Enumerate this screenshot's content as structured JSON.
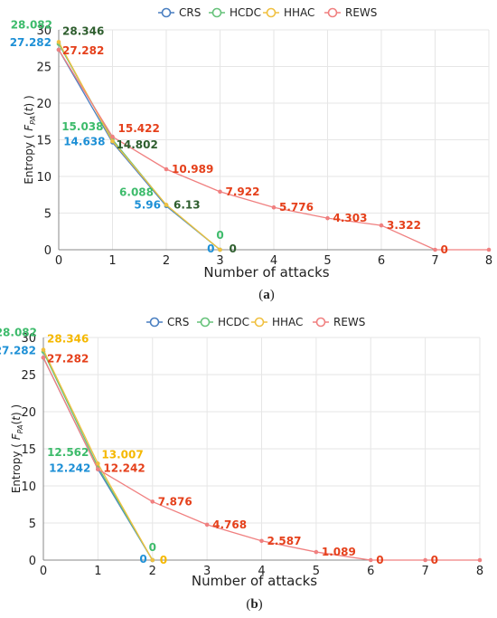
{
  "chart_data": [
    {
      "type": "line",
      "caption": "(a)",
      "xlabel": "Number of attacks",
      "ylabel": "Entropy",
      "ylabel_formula": "F",
      "ylabel_sub": "PA",
      "ylabel_arg": "t",
      "xlim": [
        0,
        8
      ],
      "ylim": [
        0,
        30
      ],
      "xticks": [
        "0",
        "1",
        "2",
        "3",
        "4",
        "5",
        "6",
        "7",
        "8"
      ],
      "yticks": [
        "0",
        "5",
        "10",
        "15",
        "20",
        "25",
        "30"
      ],
      "legend": [
        "CRS",
        "HCDC",
        "HHAC",
        "REWS"
      ],
      "legend_position": "top-center",
      "grid": true,
      "series": [
        {
          "name": "CRS",
          "color": "#4a7fc1",
          "label_color": "#1e90d6",
          "x": [
            0,
            1,
            2,
            3
          ],
          "y": [
            27.282,
            14.638,
            5.96,
            0
          ],
          "labels": [
            "27.282",
            "14.638",
            "5.96",
            "0"
          ]
        },
        {
          "name": "HCDC",
          "color": "#66c27a",
          "label_color": "#3dbb6b",
          "x": [
            0,
            1,
            2,
            3
          ],
          "y": [
            28.082,
            15.038,
            6.088,
            0
          ],
          "labels": [
            "28.082",
            "15.038",
            "6.088",
            "0"
          ]
        },
        {
          "name": "HHAC",
          "color": "#f0c040",
          "label_color": "#2e5e2e",
          "x": [
            0,
            1,
            2,
            3
          ],
          "y": [
            28.346,
            14.802,
            6.13,
            0
          ],
          "labels": [
            "28.346",
            "14.802",
            "6.13",
            "0"
          ]
        },
        {
          "name": "REWS",
          "color": "#f08080",
          "label_color": "#e5401b",
          "x": [
            0,
            1,
            2,
            3,
            4,
            5,
            6,
            7,
            8
          ],
          "y": [
            27.282,
            15.422,
            10.989,
            7.922,
            5.776,
            4.303,
            3.322,
            0,
            0
          ],
          "labels": [
            "27.282",
            "15.422",
            "10.989",
            "7.922",
            "5.776",
            "4.303",
            "3.322",
            "0",
            ""
          ]
        }
      ]
    },
    {
      "type": "line",
      "caption": "(b)",
      "xlabel": "Number of attacks",
      "ylabel": "Entropy",
      "ylabel_formula": "F",
      "ylabel_sub": "PA",
      "ylabel_arg": "t",
      "xlim": [
        0,
        8
      ],
      "ylim": [
        0,
        30
      ],
      "xticks": [
        "0",
        "1",
        "2",
        "3",
        "4",
        "5",
        "6",
        "7",
        "8"
      ],
      "yticks": [
        "0",
        "5",
        "10",
        "15",
        "20",
        "25",
        "30"
      ],
      "legend": [
        "CRS",
        "HCDC",
        "HHAC",
        "REWS"
      ],
      "legend_position": "top-center",
      "grid": true,
      "series": [
        {
          "name": "CRS",
          "color": "#4a7fc1",
          "label_color": "#1e90d6",
          "x": [
            0,
            1,
            2
          ],
          "y": [
            27.282,
            12.242,
            0
          ],
          "labels": [
            "27.282",
            "12.242",
            "0"
          ]
        },
        {
          "name": "HCDC",
          "color": "#66c27a",
          "label_color": "#3dbb6b",
          "x": [
            0,
            1,
            2
          ],
          "y": [
            28.082,
            12.562,
            0
          ],
          "labels": [
            "28.082",
            "12.562",
            "0"
          ]
        },
        {
          "name": "HHAC",
          "color": "#f0c040",
          "label_color": "#f5b800",
          "x": [
            0,
            1,
            2
          ],
          "y": [
            28.346,
            13.007,
            0
          ],
          "labels": [
            "28.346",
            "13.007",
            "0"
          ]
        },
        {
          "name": "REWS",
          "color": "#f08080",
          "label_color": "#e5401b",
          "x": [
            0,
            1,
            2,
            3,
            4,
            5,
            6,
            7,
            8
          ],
          "y": [
            27.282,
            12.242,
            7.876,
            4.768,
            2.587,
            1.089,
            0,
            0,
            0
          ],
          "labels": [
            "27.282",
            "12.242",
            "7.876",
            "4.768",
            "2.587",
            "1.089",
            "0",
            "0",
            ""
          ]
        }
      ]
    }
  ]
}
